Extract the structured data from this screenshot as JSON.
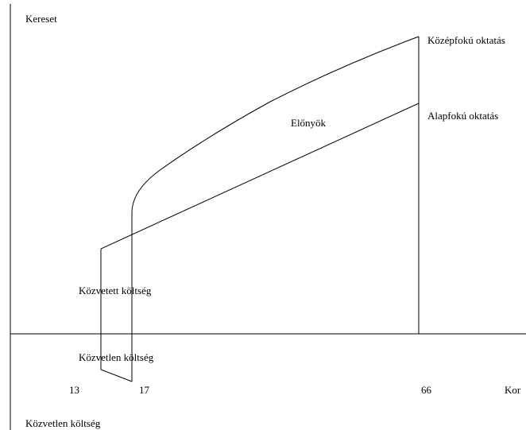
{
  "axes": {
    "y_label": "Kereset",
    "x_label": "Kor",
    "y_negative_label": "Közvetlen költség"
  },
  "curves": {
    "secondary": "Középfokú oktatás",
    "primary": "Alapfokú oktatás"
  },
  "regions": {
    "benefits": "Előnyök",
    "indirect_cost": "Közvetett költség",
    "direct_cost": "Közvetlen költség"
  },
  "ages": {
    "start": "13",
    "schooling_end": "17",
    "retirement": "66"
  },
  "colors": {
    "line": "#000000",
    "text": "#000000",
    "background": "#ffffff"
  }
}
